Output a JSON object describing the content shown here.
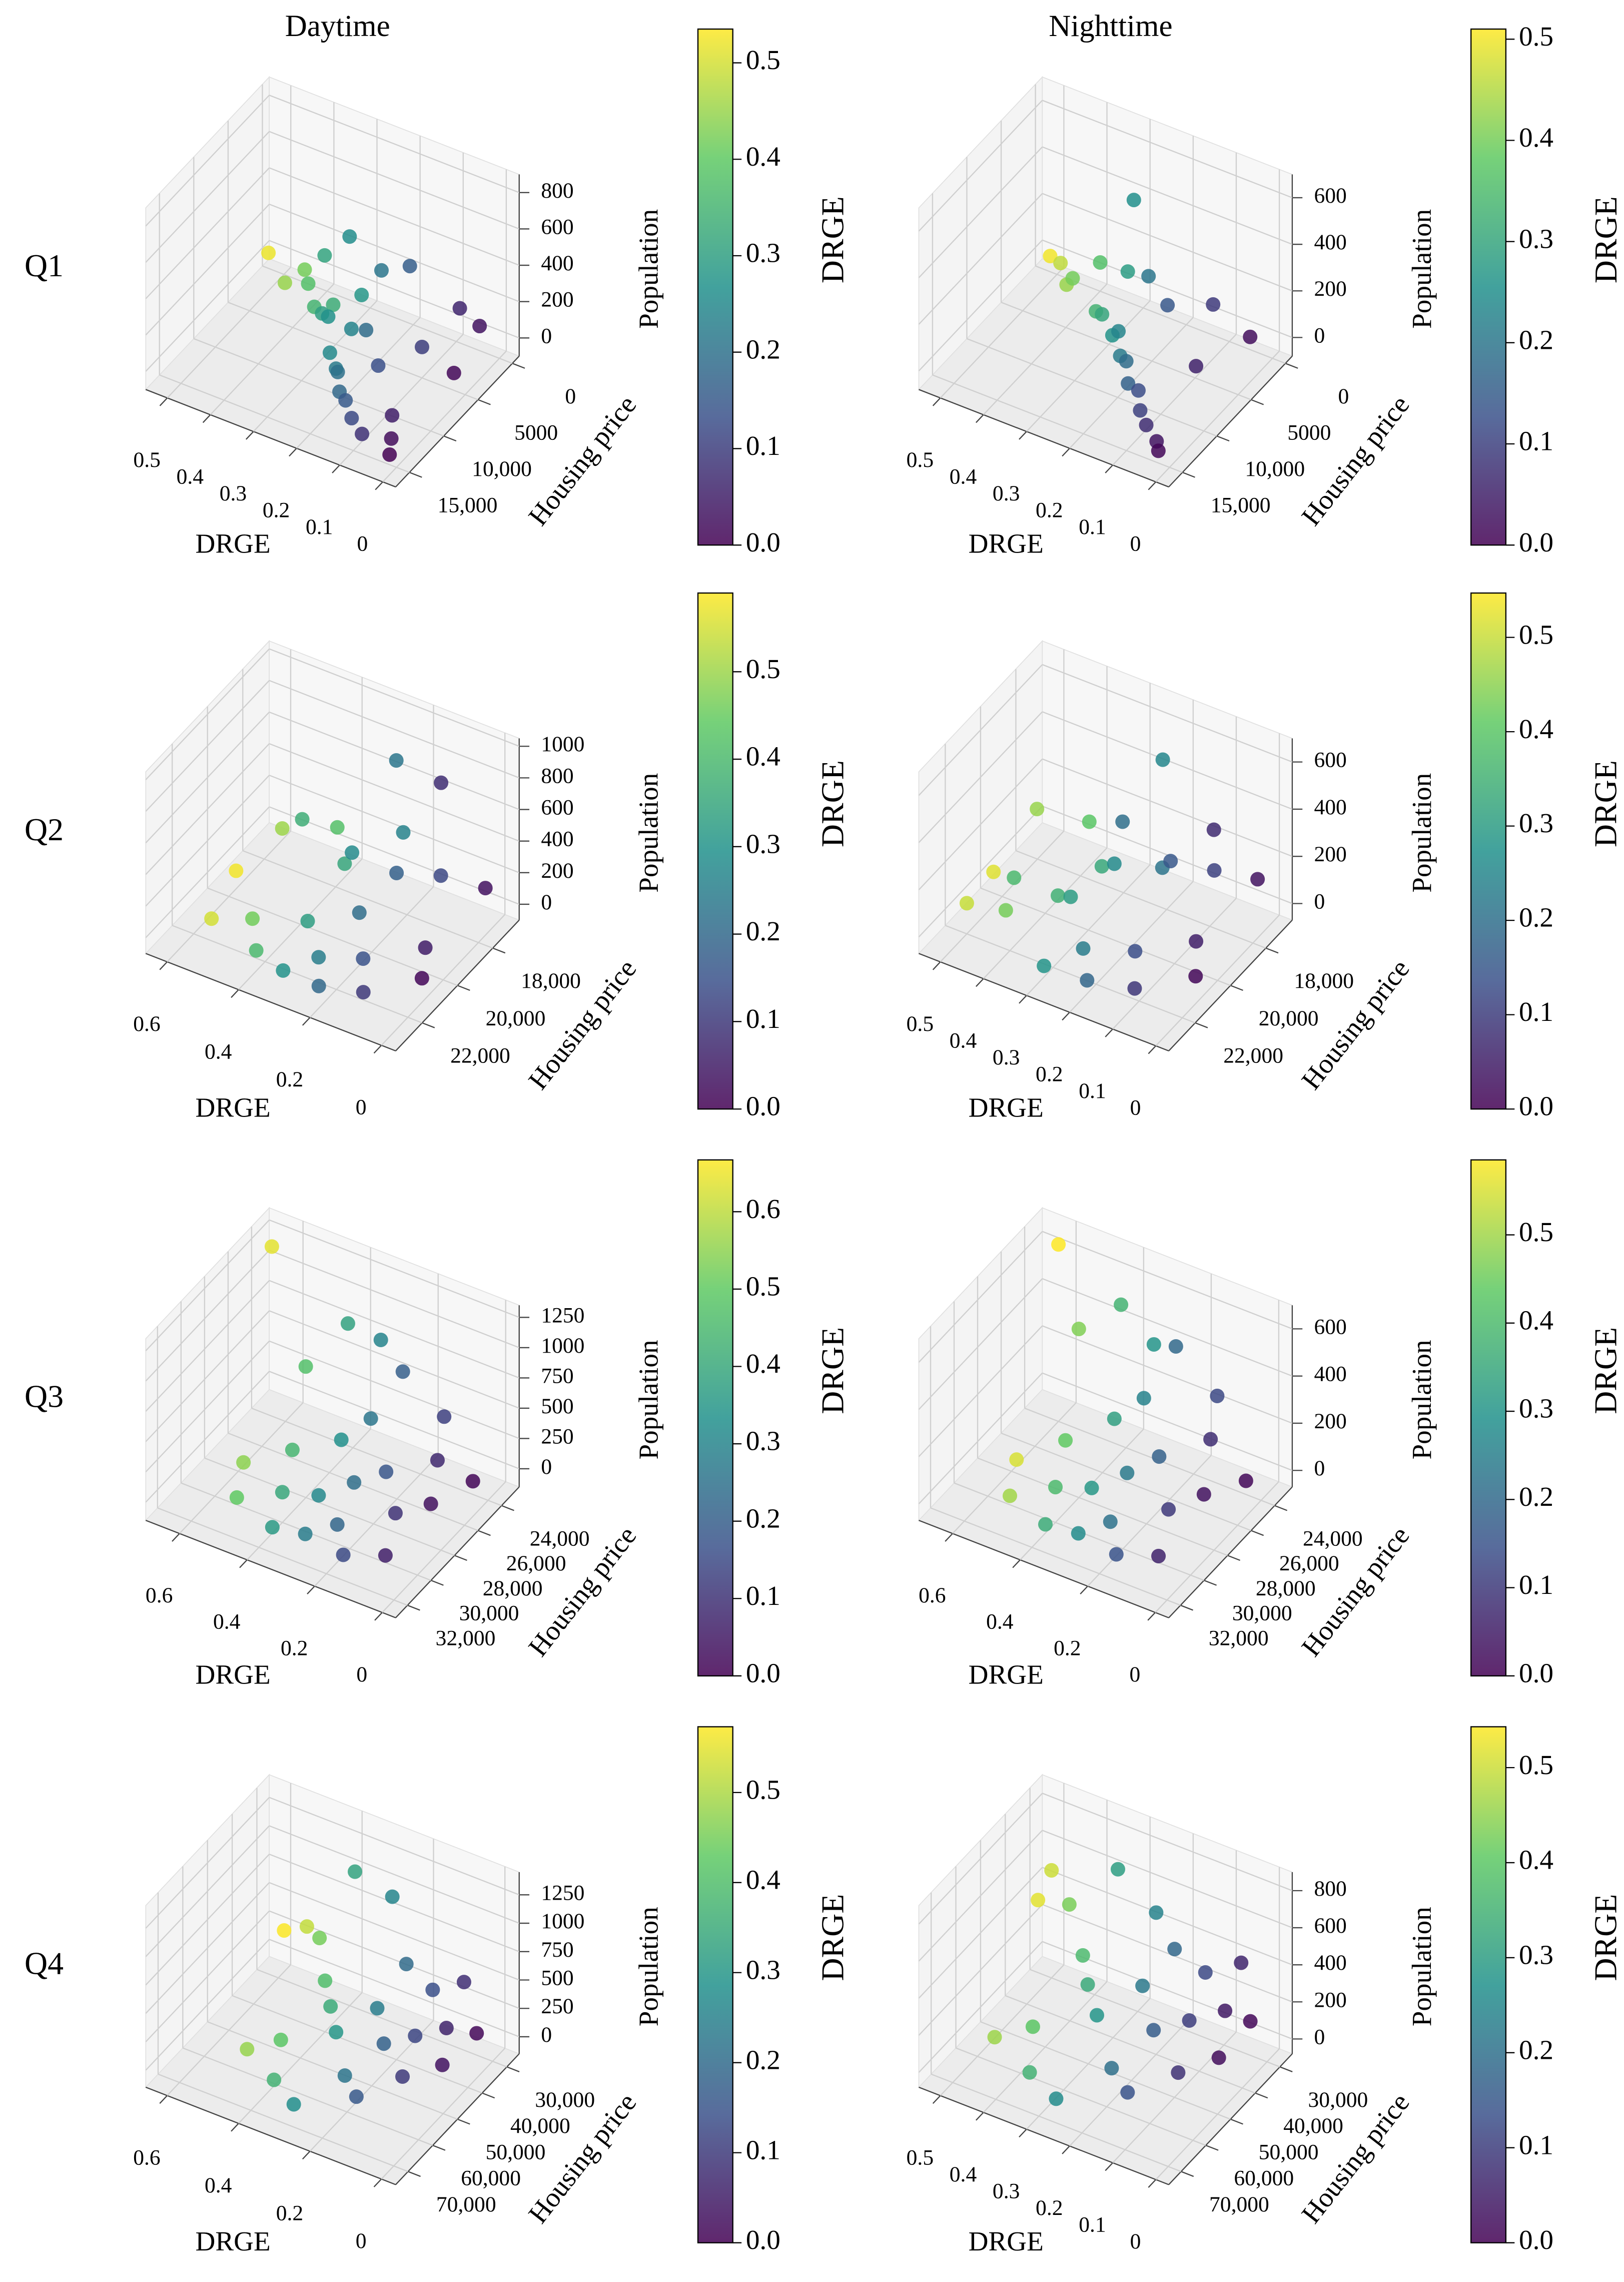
{
  "chart_data": [
    {
      "type": "scatter3d",
      "title": "Daytime",
      "row_label": "Q1",
      "xlabel": "DRGE",
      "ylabel": "Housing price",
      "zlabel": "Population",
      "colorbar_label": "DRGE",
      "colormap": "viridis",
      "xlim": [
        -0.03,
        0.55
      ],
      "ylim": [
        -1000,
        17000
      ],
      "zlim": [
        -100,
        900
      ],
      "clim": [
        0,
        0.535
      ],
      "xticks": [
        0,
        0.1,
        0.2,
        0.3,
        0.4,
        0.5
      ],
      "yticks": [
        0,
        5000,
        {
          "value": 10000,
          "label": "10,000"
        },
        {
          "value": 15000,
          "label": "15,000"
        }
      ],
      "zticks": [
        0,
        200,
        400,
        600,
        800
      ],
      "cticks": [
        {
          "value": 0,
          "label": "0.0"
        },
        0.1,
        0.2,
        0.3,
        0.4,
        0.5
      ],
      "x": [
        0.52,
        0.45,
        0.42,
        0.38,
        0.35,
        0.33,
        0.31,
        0.3,
        0.28,
        0.27,
        0.26,
        0.25,
        0.24,
        0.22,
        0.21,
        0.2,
        0.19,
        0.18,
        0.16,
        0.15,
        0.13,
        0.12,
        0.1,
        0.08,
        0.06,
        0.05,
        0.03,
        0.02,
        0.01,
        0.0
      ],
      "y": [
        1000,
        3000,
        2000,
        4000,
        5000,
        3500,
        6000,
        7000,
        2500,
        8000,
        5500,
        9000,
        6500,
        10000,
        4000,
        11000,
        7500,
        12000,
        3000,
        13000,
        9500,
        14000,
        5000,
        15000,
        2000,
        12500,
        1000,
        14500,
        6000,
        16000
      ],
      "z": [
        40,
        20,
        80,
        120,
        60,
        30,
        420,
        150,
        90,
        200,
        550,
        60,
        100,
        40,
        350,
        80,
        180,
        30,
        380,
        50,
        120,
        20,
        70,
        10,
        200,
        40,
        90,
        20,
        50,
        10
      ]
    },
    {
      "type": "scatter3d",
      "title": "Nighttime",
      "xlabel": "DRGE",
      "ylabel": "Housing price",
      "zlabel": "Population",
      "colorbar_label": "DRGE",
      "colormap": "viridis",
      "xlim": [
        -0.03,
        0.55
      ],
      "ylim": [
        -1000,
        17000
      ],
      "zlim": [
        -80,
        700
      ],
      "clim": [
        0,
        0.51
      ],
      "xticks": [
        0,
        0.1,
        0.2,
        0.3,
        0.4,
        0.5
      ],
      "yticks": [
        0,
        5000,
        {
          "value": 10000,
          "label": "10,000"
        },
        {
          "value": 15000,
          "label": "15,000"
        }
      ],
      "zticks": [
        0,
        200,
        400,
        600
      ],
      "cticks": [
        {
          "value": 0,
          "label": "0.0"
        },
        0.1,
        0.2,
        0.3,
        0.4,
        0.5
      ],
      "x": [
        0.5,
        0.46,
        0.43,
        0.4,
        0.36,
        0.33,
        0.3,
        0.28,
        0.26,
        0.25,
        0.23,
        0.21,
        0.2,
        0.18,
        0.16,
        0.14,
        0.12,
        0.1,
        0.09,
        0.07,
        0.05,
        0.03,
        0.02,
        0.01
      ],
      "y": [
        1000,
        2000,
        3000,
        4000,
        2500,
        5000,
        6000,
        3500,
        7000,
        4500,
        8000,
        9000,
        5500,
        10000,
        11000,
        6500,
        12000,
        13000,
        3000,
        14000,
        8000,
        15000,
        2000,
        16000
      ],
      "z": [
        30,
        60,
        20,
        100,
        150,
        40,
        80,
        200,
        50,
        560,
        120,
        60,
        300,
        90,
        40,
        250,
        70,
        30,
        180,
        20,
        100,
        10,
        60,
        15
      ]
    },
    {
      "type": "scatter3d",
      "row_label": "Q2",
      "xlabel": "DRGE",
      "ylabel": "Housing price",
      "zlabel": "Population",
      "colorbar_label": "DRGE",
      "colormap": "viridis",
      "xlim": [
        -0.04,
        0.66
      ],
      "ylim": [
        16500,
        23500
      ],
      "zlim": [
        -100,
        1050
      ],
      "clim": [
        0,
        0.59
      ],
      "xticks": [
        0,
        0.2,
        0.4,
        0.6
      ],
      "yticks": [
        {
          "value": 18000,
          "label": "18,000"
        },
        {
          "value": 20000,
          "label": "20,000"
        },
        {
          "value": 22000,
          "label": "22,000"
        }
      ],
      "zticks": [
        0,
        200,
        400,
        600,
        800,
        1000
      ],
      "cticks": [
        {
          "value": 0,
          "label": "0.0"
        },
        0.1,
        0.2,
        0.3,
        0.4,
        0.5
      ],
      "x": [
        0.58,
        0.55,
        0.5,
        0.46,
        0.42,
        0.4,
        0.37,
        0.35,
        0.33,
        0.3,
        0.28,
        0.26,
        0.25,
        0.23,
        0.21,
        0.2,
        0.18,
        0.15,
        0.13,
        0.1,
        0.08,
        0.05,
        0.03,
        0.01
      ],
      "y": [
        20000,
        22000,
        19000,
        21500,
        17500,
        22500,
        20500,
        18500,
        21000,
        23000,
        19500,
        17000,
        22000,
        18000,
        20500,
        23000,
        19000,
        21500,
        17500,
        22500,
        18500,
        20000,
        17000,
        21000
      ],
      "z": [
        80,
        40,
        300,
        60,
        200,
        30,
        650,
        150,
        100,
        50,
        400,
        250,
        60,
        850,
        200,
        40,
        300,
        80,
        150,
        30,
        900,
        60,
        100,
        20
      ]
    },
    {
      "type": "scatter3d",
      "xlabel": "DRGE",
      "ylabel": "Housing price",
      "zlabel": "Population",
      "colorbar_label": "DRGE",
      "colormap": "viridis",
      "xlim": [
        -0.03,
        0.55
      ],
      "ylim": [
        16500,
        23500
      ],
      "zlim": [
        -70,
        700
      ],
      "clim": [
        0,
        0.547
      ],
      "xticks": [
        0,
        0.1,
        0.2,
        0.3,
        0.4,
        0.5
      ],
      "yticks": [
        {
          "value": 18000,
          "label": "18,000"
        },
        {
          "value": 20000,
          "label": "20,000"
        },
        {
          "value": 22000,
          "label": "22,000"
        }
      ],
      "zticks": [
        0,
        200,
        400,
        600
      ],
      "cticks": [
        {
          "value": 0,
          "label": "0.0"
        },
        0.1,
        0.2,
        0.3,
        0.4,
        0.5
      ],
      "x": [
        0.52,
        0.5,
        0.46,
        0.43,
        0.4,
        0.37,
        0.35,
        0.33,
        0.3,
        0.28,
        0.26,
        0.25,
        0.23,
        0.21,
        0.2,
        0.18,
        0.15,
        0.13,
        0.11,
        0.09,
        0.07,
        0.05,
        0.03,
        0.01
      ],
      "y": [
        20000,
        22000,
        19000,
        21500,
        17500,
        22500,
        20500,
        18500,
        21000,
        23000,
        19500,
        17000,
        22000,
        18000,
        20500,
        23000,
        19000,
        21500,
        17500,
        22500,
        18500,
        20000,
        17000,
        21000
      ],
      "z": [
        20,
        60,
        250,
        40,
        120,
        300,
        80,
        60,
        150,
        30,
        200,
        450,
        60,
        100,
        500,
        40,
        250,
        80,
        120,
        30,
        400,
        60,
        100,
        20
      ]
    },
    {
      "type": "scatter3d",
      "row_label": "Q3",
      "xlabel": "DRGE",
      "ylabel": "Housing price",
      "zlabel": "Population",
      "colorbar_label": "DRGE",
      "colormap": "viridis",
      "xlim": [
        -0.04,
        0.7
      ],
      "ylim": [
        22500,
        33000
      ],
      "zlim": [
        -150,
        1350
      ],
      "clim": [
        0,
        0.667
      ],
      "xticks": [
        0,
        0.2,
        0.4,
        0.6
      ],
      "yticks": [
        {
          "value": 24000,
          "label": "24,000"
        },
        {
          "value": 26000,
          "label": "26,000"
        },
        {
          "value": 28000,
          "label": "28,000"
        },
        {
          "value": 30000,
          "label": "30,000"
        },
        {
          "value": 32000,
          "label": "32,000"
        }
      ],
      "zticks": [
        0,
        250,
        500,
        750,
        1000,
        1250
      ],
      "cticks": [
        {
          "value": 0,
          "label": "0.0"
        },
        0.1,
        0.2,
        0.3,
        0.4,
        0.5,
        0.6
      ],
      "x": [
        0.64,
        0.55,
        0.5,
        0.47,
        0.44,
        0.4,
        0.38,
        0.36,
        0.33,
        0.31,
        0.3,
        0.28,
        0.26,
        0.24,
        0.22,
        0.2,
        0.18,
        0.15,
        0.13,
        0.1,
        0.08,
        0.06,
        0.03,
        0.01
      ],
      "y": [
        24000,
        29000,
        31000,
        26000,
        28000,
        30000,
        25000,
        32000,
        27000,
        29500,
        24500,
        31500,
        26500,
        28500,
        30500,
        25500,
        27500,
        32000,
        24000,
        29000,
        26000,
        31000,
        28000,
        25000
      ],
      "z": [
        1250,
        80,
        50,
        650,
        200,
        100,
        1000,
        60,
        300,
        120,
        900,
        40,
        500,
        200,
        80,
        850,
        250,
        60,
        400,
        150,
        300,
        50,
        200,
        100
      ]
    },
    {
      "type": "scatter3d",
      "xlabel": "DRGE",
      "ylabel": "Housing price",
      "zlabel": "Population",
      "colorbar_label": "DRGE",
      "colormap": "viridis",
      "xlim": [
        -0.04,
        0.7
      ],
      "ylim": [
        22500,
        33000
      ],
      "zlim": [
        -70,
        700
      ],
      "clim": [
        0,
        0.585
      ],
      "xticks": [
        0,
        0.2,
        0.4,
        0.6
      ],
      "yticks": [
        {
          "value": 24000,
          "label": "24,000"
        },
        {
          "value": 26000,
          "label": "26,000"
        },
        {
          "value": 28000,
          "label": "28,000"
        },
        {
          "value": 30000,
          "label": "30,000"
        },
        {
          "value": 32000,
          "label": "32,000"
        }
      ],
      "zticks": [
        0,
        200,
        400,
        600
      ],
      "cticks": [
        {
          "value": 0,
          "label": "0.0"
        },
        0.1,
        0.2,
        0.3,
        0.4,
        0.5
      ],
      "x": [
        0.6,
        0.55,
        0.5,
        0.47,
        0.44,
        0.4,
        0.38,
        0.36,
        0.33,
        0.31,
        0.3,
        0.28,
        0.26,
        0.24,
        0.22,
        0.2,
        0.18,
        0.15,
        0.13,
        0.1,
        0.08,
        0.06,
        0.03,
        0.01
      ],
      "y": [
        24000,
        29000,
        31000,
        26000,
        28000,
        30000,
        25000,
        32000,
        27000,
        29500,
        24500,
        31500,
        26500,
        28500,
        30500,
        25500,
        27500,
        32000,
        24000,
        29000,
        26000,
        31000,
        28000,
        25000
      ],
      "z": [
        680,
        60,
        40,
        500,
        150,
        80,
        600,
        50,
        250,
        100,
        450,
        30,
        350,
        150,
        60,
        550,
        200,
        40,
        300,
        100,
        250,
        30,
        150,
        60
      ]
    },
    {
      "type": "scatter3d",
      "row_label": "Q4",
      "xlabel": "DRGE",
      "ylabel": "Housing price",
      "zlabel": "Population",
      "colorbar_label": "DRGE",
      "colormap": "viridis",
      "xlim": [
        -0.04,
        0.66
      ],
      "ylim": [
        25000,
        75000
      ],
      "zlim": [
        -150,
        1450
      ],
      "clim": [
        0,
        0.573
      ],
      "xticks": [
        0,
        0.2,
        0.4,
        0.6
      ],
      "yticks": [
        {
          "value": 30000,
          "label": "30,000"
        },
        {
          "value": 40000,
          "label": "40,000"
        },
        {
          "value": 50000,
          "label": "50,000"
        },
        {
          "value": 60000,
          "label": "60,000"
        },
        {
          "value": 70000,
          "label": "70,000"
        }
      ],
      "zticks": [
        0,
        250,
        500,
        750,
        1000,
        1250
      ],
      "cticks": [
        {
          "value": 0,
          "label": "0.0"
        },
        0.1,
        0.2,
        0.3,
        0.4,
        0.5
      ],
      "x": [
        0.57,
        0.52,
        0.48,
        0.45,
        0.42,
        0.4,
        0.37,
        0.35,
        0.33,
        0.3,
        0.28,
        0.26,
        0.24,
        0.22,
        0.2,
        0.18,
        0.16,
        0.14,
        0.12,
        0.1,
        0.08,
        0.06,
        0.03,
        0.01
      ],
      "y": [
        32000,
        30000,
        60000,
        35000,
        55000,
        40000,
        65000,
        45000,
        38000,
        50000,
        70000,
        33000,
        42000,
        58000,
        36000,
        48000,
        62000,
        34000,
        44000,
        52000,
        30000,
        40000,
        46000,
        35000
      ],
      "z": [
        350,
        400,
        60,
        500,
        100,
        300,
        40,
        250,
        1300,
        200,
        50,
        1050,
        300,
        100,
        600,
        200,
        80,
        400,
        250,
        100,
        450,
        300,
        150,
        200
      ]
    },
    {
      "type": "scatter3d",
      "xlabel": "DRGE",
      "ylabel": "Housing price",
      "zlabel": "Population",
      "colorbar_label": "DRGE",
      "colormap": "viridis",
      "xlim": [
        -0.03,
        0.55
      ],
      "ylim": [
        25000,
        75000
      ],
      "zlim": [
        -80,
        900
      ],
      "clim": [
        0,
        0.543
      ],
      "xticks": [
        0,
        0.1,
        0.2,
        0.3,
        0.4,
        0.5
      ],
      "yticks": [
        {
          "value": 30000,
          "label": "30,000"
        },
        {
          "value": 40000,
          "label": "40,000"
        },
        {
          "value": 50000,
          "label": "50,000"
        },
        {
          "value": 60000,
          "label": "60,000"
        },
        {
          "value": 70000,
          "label": "70,000"
        }
      ],
      "zticks": [
        0,
        200,
        400,
        600,
        800
      ],
      "cticks": [
        {
          "value": 0,
          "label": "0.0"
        },
        0.1,
        0.2,
        0.3,
        0.4,
        0.5
      ],
      "x": [
        0.52,
        0.5,
        0.46,
        0.43,
        0.4,
        0.37,
        0.35,
        0.33,
        0.3,
        0.28,
        0.26,
        0.24,
        0.22,
        0.2,
        0.18,
        0.16,
        0.14,
        0.12,
        0.1,
        0.08,
        0.06,
        0.04,
        0.02,
        0.01
      ],
      "y": [
        32000,
        30000,
        60000,
        35000,
        55000,
        40000,
        65000,
        45000,
        38000,
        50000,
        70000,
        33000,
        42000,
        58000,
        36000,
        48000,
        62000,
        34000,
        44000,
        52000,
        30000,
        40000,
        46000,
        35000
      ],
      "z": [
        350,
        500,
        60,
        450,
        100,
        300,
        40,
        250,
        800,
        200,
        50,
        550,
        300,
        100,
        450,
        200,
        80,
        350,
        250,
        100,
        400,
        300,
        150,
        200
      ]
    }
  ]
}
